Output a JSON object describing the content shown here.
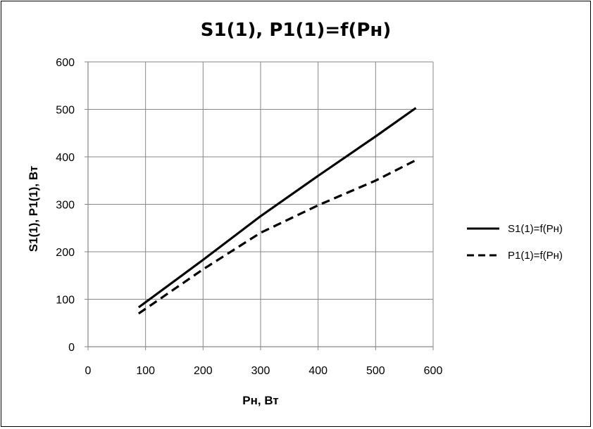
{
  "chart_data": {
    "type": "line",
    "title": "S1(1), P1(1)=f(Pн)",
    "xlabel": "Pн, Вт",
    "ylabel": "S1(1), P1(1), Вт",
    "xlim": [
      0,
      600
    ],
    "ylim": [
      0,
      600
    ],
    "xticks": [
      0,
      100,
      200,
      300,
      400,
      500,
      600
    ],
    "yticks": [
      0,
      100,
      200,
      300,
      400,
      500,
      600
    ],
    "grid": true,
    "legend_position": "right",
    "series": [
      {
        "name": "S1(1)=f(Pн)",
        "style": "solid",
        "color": "#000000",
        "x": [
          88,
          200,
          300,
          400,
          500,
          570
        ],
        "y": [
          83,
          183,
          275,
          360,
          443,
          503
        ]
      },
      {
        "name": "P1(1)=f(Pн)",
        "style": "dashed",
        "color": "#000000",
        "x": [
          88,
          200,
          300,
          400,
          500,
          570
        ],
        "y": [
          70,
          163,
          240,
          298,
          350,
          393
        ]
      }
    ]
  }
}
